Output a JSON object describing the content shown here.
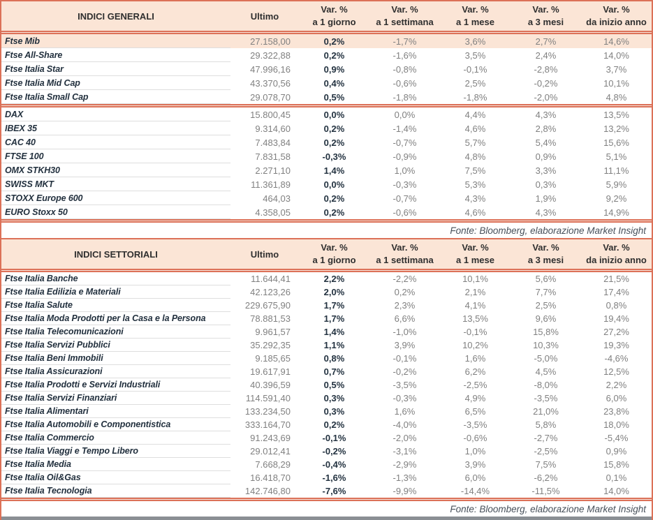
{
  "source_note": "Fonte: Bloomberg, elaborazione Market Insight",
  "columns": {
    "ultimo": "Ultimo",
    "var": [
      {
        "line1": "Var. %",
        "line2": "a 1 giorno"
      },
      {
        "line1": "Var. %",
        "line2": "a 1 settimana"
      },
      {
        "line1": "Var. %",
        "line2": "a 1 mese"
      },
      {
        "line1": "Var. %",
        "line2": "a 3 mesi"
      },
      {
        "line1": "Var. %",
        "line2": "da inizio anno"
      }
    ]
  },
  "colors": {
    "accent_border": "#DC7158",
    "header_bg": "#FBE5D6",
    "highlight_row_bg": "#FBE5D6",
    "name_text": "#22303E",
    "value_text": "#808080",
    "bold_value_text": "#233240"
  },
  "tables": [
    {
      "title": "INDICI GENERALI",
      "groups": [
        {
          "rows": [
            {
              "name": "Ftse Mib",
              "ultimo": "27.158,00",
              "var_1d": "0,2%",
              "var_1w": "-1,7%",
              "var_1m": "3,6%",
              "var_3m": "2,7%",
              "var_ytd": "14,6%",
              "highlight": true
            },
            {
              "name": "Ftse All-Share",
              "ultimo": "29.322,88",
              "var_1d": "0,2%",
              "var_1w": "-1,6%",
              "var_1m": "3,5%",
              "var_3m": "2,4%",
              "var_ytd": "14,0%"
            },
            {
              "name": "Ftse Italia Star",
              "ultimo": "47.996,16",
              "var_1d": "0,9%",
              "var_1w": "-0,8%",
              "var_1m": "-0,1%",
              "var_3m": "-2,8%",
              "var_ytd": "3,7%"
            },
            {
              "name": "Ftse Italia Mid Cap",
              "ultimo": "43.370,56",
              "var_1d": "0,4%",
              "var_1w": "-0,6%",
              "var_1m": "2,5%",
              "var_3m": "-0,2%",
              "var_ytd": "10,1%"
            },
            {
              "name": "Ftse Italia Small Cap",
              "ultimo": "29.078,70",
              "var_1d": "0,5%",
              "var_1w": "-1,8%",
              "var_1m": "-1,8%",
              "var_3m": "-2,0%",
              "var_ytd": "4,8%"
            }
          ]
        },
        {
          "rows": [
            {
              "name": "DAX",
              "ultimo": "15.800,45",
              "var_1d": "0,0%",
              "var_1w": "0,0%",
              "var_1m": "4,4%",
              "var_3m": "4,3%",
              "var_ytd": "13,5%"
            },
            {
              "name": "IBEX 35",
              "ultimo": "9.314,60",
              "var_1d": "0,2%",
              "var_1w": "-1,4%",
              "var_1m": "4,6%",
              "var_3m": "2,8%",
              "var_ytd": "13,2%"
            },
            {
              "name": "CAC 40",
              "ultimo": "7.483,84",
              "var_1d": "0,2%",
              "var_1w": "-0,7%",
              "var_1m": "5,7%",
              "var_3m": "5,4%",
              "var_ytd": "15,6%"
            },
            {
              "name": "FTSE 100",
              "ultimo": "7.831,58",
              "var_1d": "-0,3%",
              "var_1w": "-0,9%",
              "var_1m": "4,8%",
              "var_3m": "0,9%",
              "var_ytd": "5,1%"
            },
            {
              "name": "OMX STKH30",
              "ultimo": "2.271,10",
              "var_1d": "1,4%",
              "var_1w": "1,0%",
              "var_1m": "7,5%",
              "var_3m": "3,3%",
              "var_ytd": "11,1%"
            },
            {
              "name": "SWISS MKT",
              "ultimo": "11.361,89",
              "var_1d": "0,0%",
              "var_1w": "-0,3%",
              "var_1m": "5,3%",
              "var_3m": "0,3%",
              "var_ytd": "5,9%"
            },
            {
              "name": "STOXX Europe 600",
              "ultimo": "464,03",
              "var_1d": "0,2%",
              "var_1w": "-0,7%",
              "var_1m": "4,3%",
              "var_3m": "1,9%",
              "var_ytd": "9,2%"
            },
            {
              "name": "EURO Stoxx 50",
              "ultimo": "4.358,05",
              "var_1d": "0,2%",
              "var_1w": "-0,6%",
              "var_1m": "4,6%",
              "var_3m": "4,3%",
              "var_ytd": "14,9%"
            }
          ]
        }
      ]
    },
    {
      "title": "INDICI SETTORIALI",
      "groups": [
        {
          "rows": [
            {
              "name": "Ftse Italia Banche",
              "ultimo": "11.644,41",
              "var_1d": "2,2%",
              "var_1w": "-2,2%",
              "var_1m": "10,1%",
              "var_3m": "5,6%",
              "var_ytd": "21,5%"
            },
            {
              "name": "Ftse Italia Edilizia e Materiali",
              "ultimo": "42.123,26",
              "var_1d": "2,0%",
              "var_1w": "0,2%",
              "var_1m": "2,1%",
              "var_3m": "7,7%",
              "var_ytd": "17,4%"
            },
            {
              "name": "Ftse Italia Salute",
              "ultimo": "229.675,90",
              "var_1d": "1,7%",
              "var_1w": "2,3%",
              "var_1m": "4,1%",
              "var_3m": "2,5%",
              "var_ytd": "0,8%"
            },
            {
              "name": "Ftse Italia Moda Prodotti per la Casa e la Persona",
              "ultimo": "78.881,53",
              "var_1d": "1,7%",
              "var_1w": "6,6%",
              "var_1m": "13,5%",
              "var_3m": "9,6%",
              "var_ytd": "19,4%"
            },
            {
              "name": "Ftse Italia Telecomunicazioni",
              "ultimo": "9.961,57",
              "var_1d": "1,4%",
              "var_1w": "-1,0%",
              "var_1m": "-0,1%",
              "var_3m": "15,8%",
              "var_ytd": "27,2%"
            },
            {
              "name": "Ftse Italia Servizi Pubblici",
              "ultimo": "35.292,35",
              "var_1d": "1,1%",
              "var_1w": "3,9%",
              "var_1m": "10,2%",
              "var_3m": "10,3%",
              "var_ytd": "19,3%"
            },
            {
              "name": "Ftse Italia Beni Immobili",
              "ultimo": "9.185,65",
              "var_1d": "0,8%",
              "var_1w": "-0,1%",
              "var_1m": "1,6%",
              "var_3m": "-5,0%",
              "var_ytd": "-4,6%"
            },
            {
              "name": "Ftse Italia Assicurazioni",
              "ultimo": "19.617,91",
              "var_1d": "0,7%",
              "var_1w": "-0,2%",
              "var_1m": "6,2%",
              "var_3m": "4,5%",
              "var_ytd": "12,5%"
            },
            {
              "name": "Ftse Italia Prodotti e Servizi Industriali",
              "ultimo": "40.396,59",
              "var_1d": "0,5%",
              "var_1w": "-3,5%",
              "var_1m": "-2,5%",
              "var_3m": "-8,0%",
              "var_ytd": "2,2%"
            },
            {
              "name": "Ftse Italia Servizi Finanziari",
              "ultimo": "114.591,40",
              "var_1d": "0,3%",
              "var_1w": "-0,3%",
              "var_1m": "4,9%",
              "var_3m": "-3,5%",
              "var_ytd": "6,0%"
            },
            {
              "name": "Ftse Italia Alimentari",
              "ultimo": "133.234,50",
              "var_1d": "0,3%",
              "var_1w": "1,6%",
              "var_1m": "6,5%",
              "var_3m": "21,0%",
              "var_ytd": "23,8%"
            },
            {
              "name": "Ftse Italia Automobili e Componentistica",
              "ultimo": "333.164,70",
              "var_1d": "0,2%",
              "var_1w": "-4,0%",
              "var_1m": "-3,5%",
              "var_3m": "5,8%",
              "var_ytd": "18,0%"
            },
            {
              "name": "Ftse Italia Commercio",
              "ultimo": "91.243,69",
              "var_1d": "-0,1%",
              "var_1w": "-2,0%",
              "var_1m": "-0,6%",
              "var_3m": "-2,7%",
              "var_ytd": "-5,4%"
            },
            {
              "name": "Ftse Italia Viaggi e Tempo Libero",
              "ultimo": "29.012,41",
              "var_1d": "-0,2%",
              "var_1w": "-3,1%",
              "var_1m": "1,0%",
              "var_3m": "-2,5%",
              "var_ytd": "0,9%"
            },
            {
              "name": "Ftse Italia Media",
              "ultimo": "7.668,29",
              "var_1d": "-0,4%",
              "var_1w": "-2,9%",
              "var_1m": "3,9%",
              "var_3m": "7,5%",
              "var_ytd": "15,8%"
            },
            {
              "name": "Ftse Italia Oil&Gas",
              "ultimo": "16.418,70",
              "var_1d": "-1,6%",
              "var_1w": "-1,3%",
              "var_1m": "6,0%",
              "var_3m": "-6,2%",
              "var_ytd": "0,1%"
            },
            {
              "name": "Ftse Italia Tecnologia",
              "ultimo": "142.746,80",
              "var_1d": "-7,6%",
              "var_1w": "-9,9%",
              "var_1m": "-14,4%",
              "var_3m": "-11,5%",
              "var_ytd": "14,0%"
            }
          ]
        }
      ]
    }
  ]
}
